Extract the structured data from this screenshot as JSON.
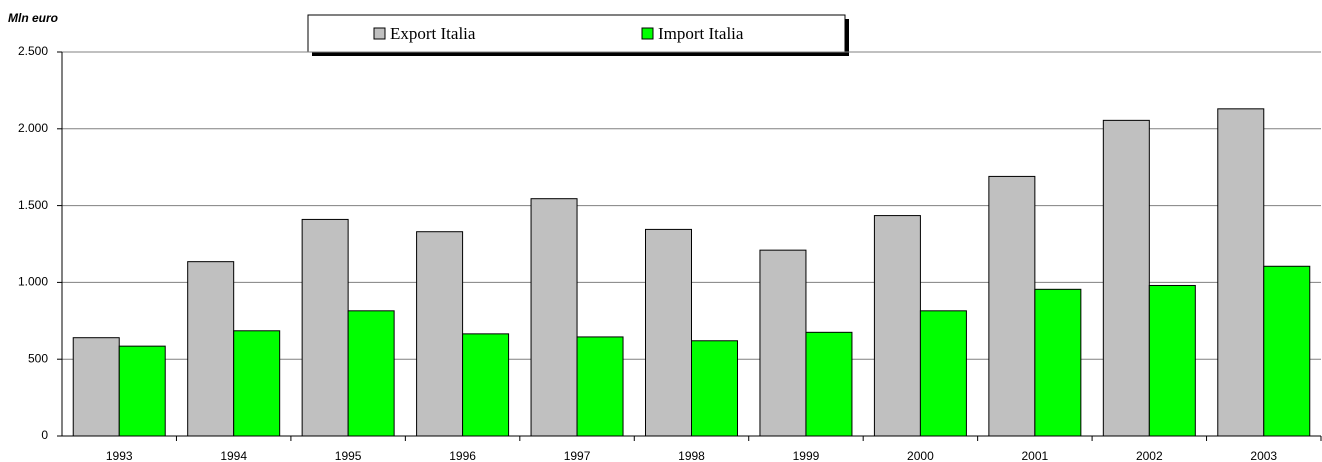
{
  "chart_data": {
    "type": "bar",
    "y_label": "Mln euro",
    "categories": [
      "1993",
      "1994",
      "1995",
      "1996",
      "1997",
      "1998",
      "1999",
      "2000",
      "2001",
      "2002",
      "2003"
    ],
    "series": [
      {
        "name": "Export Italia",
        "color": "#c0c0c0",
        "values": [
          640,
          1135,
          1410,
          1330,
          1545,
          1345,
          1210,
          1435,
          1690,
          2055,
          2130
        ]
      },
      {
        "name": "Import Italia",
        "color": "#00ff00",
        "values": [
          585,
          685,
          815,
          665,
          645,
          620,
          675,
          815,
          955,
          980,
          1105
        ]
      }
    ],
    "ylim": [
      0,
      2500
    ],
    "yticks": [
      0,
      500,
      {
        "value": 1000,
        "label": "1.000"
      },
      {
        "value": 1500,
        "label": "1.500"
      },
      {
        "value": 2000,
        "label": "2.000"
      },
      {
        "value": 2500,
        "label": "2.500"
      }
    ],
    "grid": true
  }
}
